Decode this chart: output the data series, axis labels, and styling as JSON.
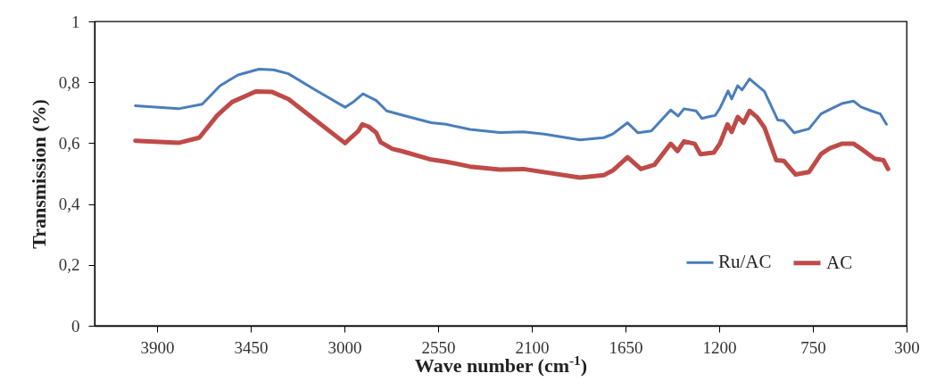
{
  "chart_data": {
    "type": "line",
    "xlabel": "Wave number (cm$^{-1}$)",
    "ylabel": "Transmission (%)",
    "xlim": [
      4200,
      300
    ],
    "xticks": [
      3900,
      3450,
      3000,
      2550,
      2100,
      1650,
      1200,
      750,
      300
    ],
    "ylim": [
      0,
      1
    ],
    "yticks": [
      0,
      {
        "value": 0.2,
        "label": "0,2"
      },
      {
        "value": 0.4,
        "label": "0,4"
      },
      {
        "value": 0.6,
        "label": "0,6"
      },
      {
        "value": 0.8,
        "label": "0,8"
      },
      1
    ],
    "grid": false,
    "legend": "bottom right",
    "marker": "none",
    "line_style": "solid",
    "series": [
      {
        "name": "Ru/AC",
        "color": "#4a7ebb",
        "x": [
          4004,
          3797,
          3683,
          3597,
          3511,
          3411,
          3340,
          3269,
          3140,
          2997,
          2954,
          2911,
          2890,
          2847,
          2797,
          2726,
          2583,
          2511,
          2397,
          2254,
          2140,
          2040,
          1869,
          1754,
          1711,
          1640,
          1590,
          1526,
          1433,
          1397,
          1369,
          1311,
          1283,
          1254,
          1219,
          1197,
          1157,
          1140,
          1111,
          1090,
          1054,
          1033,
          983,
          919,
          890,
          840,
          769,
          711,
          669,
          611,
          554,
          519,
          469,
          426,
          397
        ],
        "values": [
          0.723,
          0.713,
          0.728,
          0.789,
          0.824,
          0.843,
          0.841,
          0.828,
          0.775,
          0.718,
          0.737,
          0.762,
          0.755,
          0.74,
          0.706,
          0.693,
          0.667,
          0.662,
          0.645,
          0.635,
          0.637,
          0.63,
          0.611,
          0.618,
          0.63,
          0.667,
          0.634,
          0.64,
          0.709,
          0.689,
          0.713,
          0.706,
          0.681,
          0.686,
          0.691,
          0.714,
          0.772,
          0.745,
          0.789,
          0.775,
          0.811,
          0.799,
          0.77,
          0.676,
          0.674,
          0.634,
          0.647,
          0.696,
          0.711,
          0.73,
          0.738,
          0.719,
          0.706,
          0.696,
          0.662
        ]
      },
      {
        "name": "AC",
        "color": "#be4b48",
        "x": [
          4004,
          3797,
          3697,
          3611,
          3540,
          3426,
          3347,
          3269,
          3140,
          2997,
          2969,
          2933,
          2914,
          2883,
          2847,
          2826,
          2769,
          2726,
          2583,
          2511,
          2397,
          2254,
          2140,
          1869,
          1754,
          1711,
          1640,
          1576,
          1511,
          1433,
          1400,
          1369,
          1318,
          1290,
          1226,
          1197,
          1160,
          1140,
          1111,
          1083,
          1054,
          1019,
          983,
          926,
          890,
          833,
          769,
          711,
          669,
          611,
          554,
          511,
          454,
          411,
          389
        ],
        "values": [
          0.608,
          0.601,
          0.618,
          0.691,
          0.735,
          0.77,
          0.768,
          0.745,
          0.676,
          0.6,
          0.618,
          0.64,
          0.662,
          0.654,
          0.634,
          0.603,
          0.581,
          0.574,
          0.546,
          0.539,
          0.523,
          0.513,
          0.515,
          0.487,
          0.495,
          0.51,
          0.554,
          0.515,
          0.529,
          0.598,
          0.574,
          0.606,
          0.598,
          0.564,
          0.569,
          0.598,
          0.662,
          0.637,
          0.686,
          0.667,
          0.706,
          0.686,
          0.652,
          0.544,
          0.542,
          0.497,
          0.505,
          0.564,
          0.583,
          0.598,
          0.598,
          0.578,
          0.549,
          0.544,
          0.515
        ]
      }
    ]
  }
}
